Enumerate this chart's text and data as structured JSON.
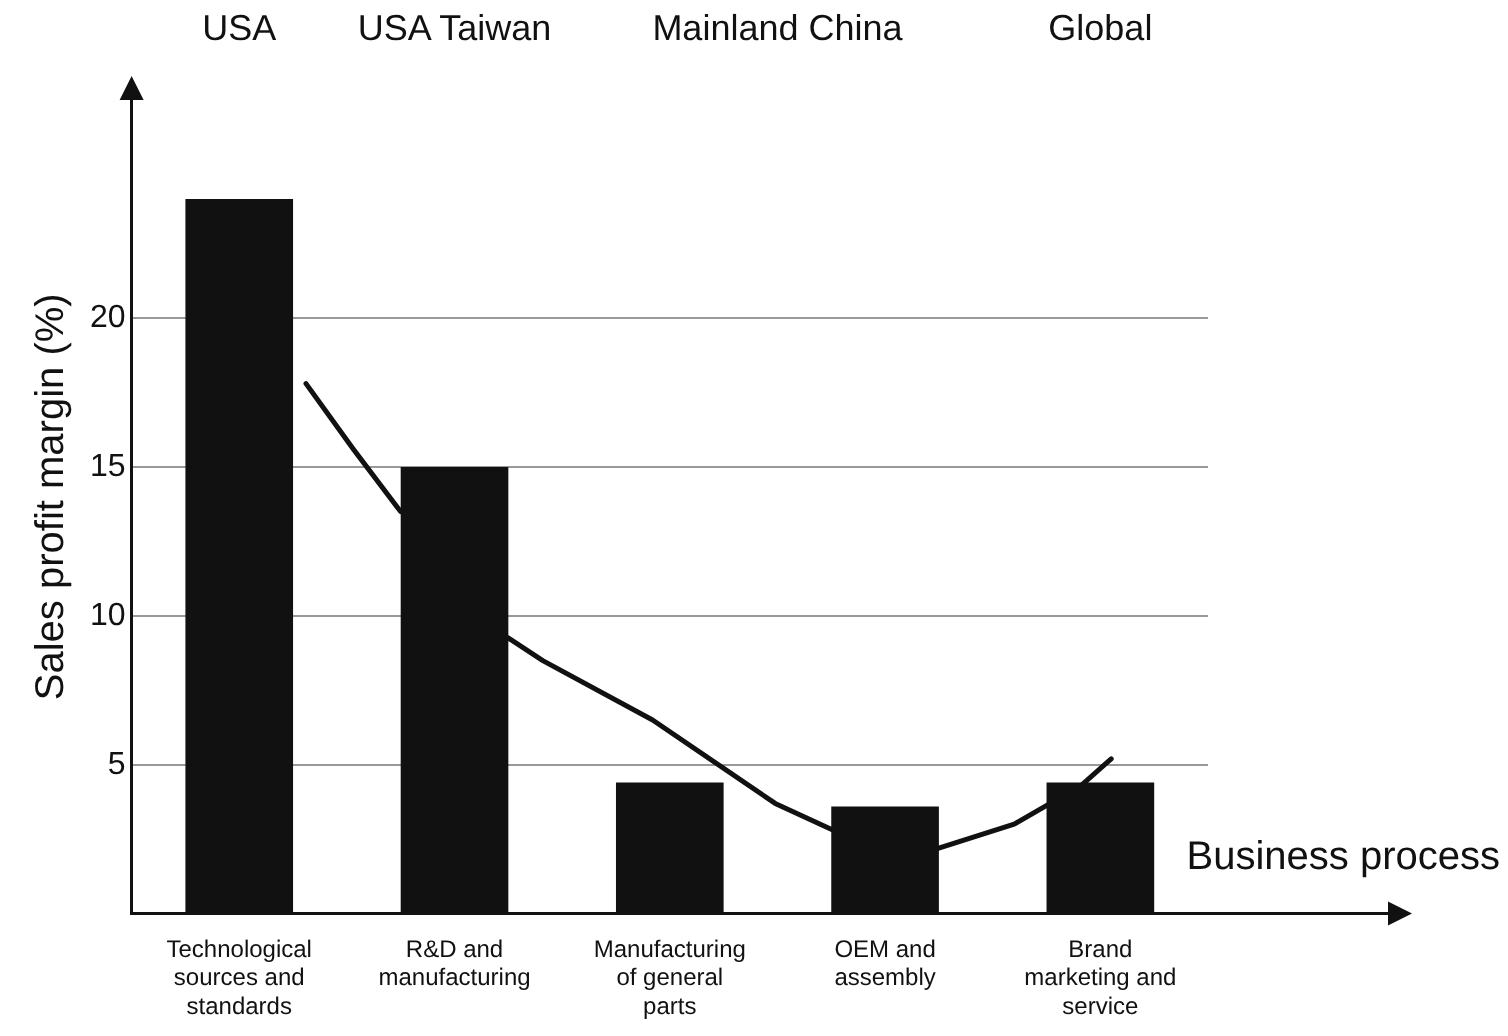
{
  "chart_data": {
    "type": "bar",
    "ylabel": "Sales profit margin (%)",
    "xlabel": "Business process",
    "categories": [
      "Technological sources and standards",
      "R&D and manufacturing",
      "Manufacturing of general parts",
      "OEM and assembly",
      "Brand marketing and service"
    ],
    "values": [
      24,
      15,
      4.4,
      3.6,
      4.4
    ],
    "color": "#111111",
    "ylim": [
      0,
      28
    ],
    "yticks": [
      5,
      10,
      15,
      20
    ],
    "grid": "y",
    "annotations": [
      "USA",
      "USA Taiwan",
      "Mainland China",
      "Global"
    ]
  }
}
